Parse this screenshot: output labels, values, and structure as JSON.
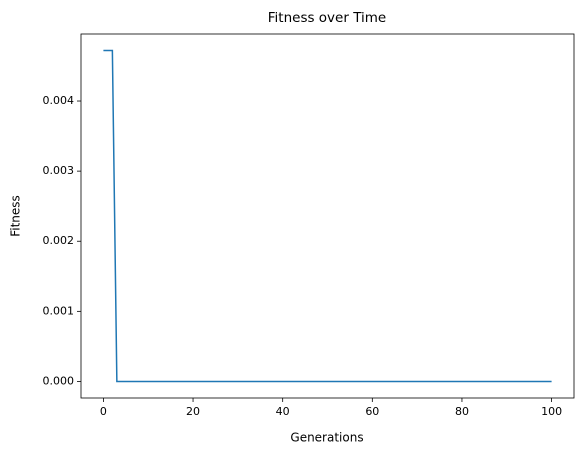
{
  "chart_data": {
    "type": "line",
    "title": "Fitness over Time",
    "xlabel": "Generations",
    "ylabel": "Fitness",
    "color": "#1f77b4",
    "x": [
      0,
      1,
      2,
      3,
      4,
      5,
      6,
      7,
      8,
      9,
      10,
      11,
      12,
      13,
      14,
      15,
      16,
      17,
      18,
      19,
      20,
      21,
      22,
      23,
      24,
      25,
      26,
      27,
      28,
      29,
      30,
      31,
      32,
      33,
      34,
      35,
      36,
      37,
      38,
      39,
      40,
      41,
      42,
      43,
      44,
      45,
      46,
      47,
      48,
      49,
      50,
      51,
      52,
      53,
      54,
      55,
      56,
      57,
      58,
      59,
      60,
      61,
      62,
      63,
      64,
      65,
      66,
      67,
      68,
      69,
      70,
      71,
      72,
      73,
      74,
      75,
      76,
      77,
      78,
      79,
      80,
      81,
      82,
      83,
      84,
      85,
      86,
      87,
      88,
      89,
      90,
      91,
      92,
      93,
      94,
      95,
      96,
      97,
      98,
      99,
      100
    ],
    "values": [
      0.00472,
      0.00472,
      0.00472,
      0,
      0,
      0,
      0,
      0,
      0,
      0,
      0,
      0,
      0,
      0,
      0,
      0,
      0,
      0,
      0,
      0,
      0,
      0,
      0,
      0,
      0,
      0,
      0,
      0,
      0,
      0,
      0,
      0,
      0,
      0,
      0,
      0,
      0,
      0,
      0,
      0,
      0,
      0,
      0,
      0,
      0,
      0,
      0,
      0,
      0,
      0,
      0,
      0,
      0,
      0,
      0,
      0,
      0,
      0,
      0,
      0,
      0,
      0,
      0,
      0,
      0,
      0,
      0,
      0,
      0,
      0,
      0,
      0,
      0,
      0,
      0,
      0,
      0,
      0,
      0,
      0,
      0,
      0,
      0,
      0,
      0,
      0,
      0,
      0,
      0,
      0,
      0,
      0,
      0,
      0,
      0,
      0,
      0,
      0,
      0,
      0,
      0
    ],
    "xlim": [
      -5,
      105
    ],
    "xticks": [
      0,
      20,
      40,
      60,
      80,
      100
    ],
    "ylim": [
      -0.000236,
      0.004956
    ],
    "yticks": [
      {
        "value": 0,
        "label": "0.000"
      },
      0.001,
      0.002,
      0.003,
      0.004
    ],
    "grid": false
  }
}
